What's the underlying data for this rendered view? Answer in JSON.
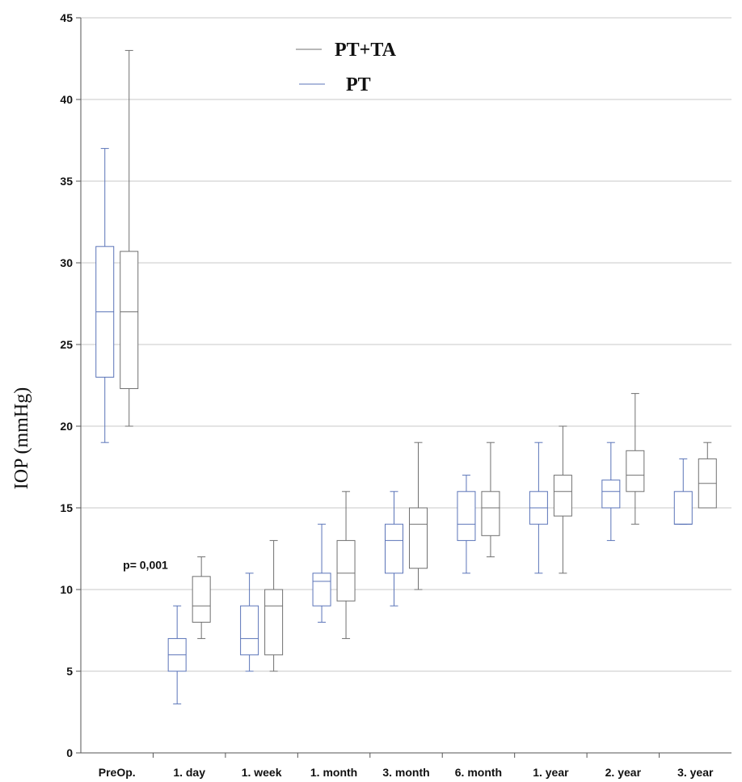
{
  "chart_data": {
    "type": "boxplot",
    "title": "",
    "xlabel": "",
    "ylabel": "IOP (mmHg)",
    "ylim": [
      0,
      45
    ],
    "yticks": [
      0,
      5,
      10,
      15,
      20,
      25,
      30,
      35,
      40,
      45
    ],
    "grid": "horizontal",
    "legend_position": "top-center",
    "categories": [
      "PreOp.",
      "1. day",
      "1. week",
      "1. month",
      "3. month",
      "6. month",
      "1. year",
      "2. year",
      "3. year"
    ],
    "series": [
      {
        "name": "PT",
        "color": "#5b74b8",
        "boxes": [
          {
            "min": 19,
            "q1": 23,
            "median": 27,
            "q3": 31,
            "max": 37
          },
          {
            "min": 3,
            "q1": 5,
            "median": 6,
            "q3": 7,
            "max": 9
          },
          {
            "min": 5,
            "q1": 6,
            "median": 7,
            "q3": 9,
            "max": 11
          },
          {
            "min": 8,
            "q1": 9,
            "median": 10.5,
            "q3": 11,
            "max": 14
          },
          {
            "min": 9,
            "q1": 11,
            "median": 13,
            "q3": 14,
            "max": 16
          },
          {
            "min": 11,
            "q1": 13,
            "median": 14,
            "q3": 16,
            "max": 17
          },
          {
            "min": 11,
            "q1": 14,
            "median": 15,
            "q3": 16,
            "max": 19
          },
          {
            "min": 13,
            "q1": 15,
            "median": 16,
            "q3": 16.7,
            "max": 19
          },
          {
            "min": 14,
            "q1": 14,
            "median": 14,
            "q3": 16,
            "max": 18
          }
        ]
      },
      {
        "name": "PT+TA",
        "color": "#707070",
        "boxes": [
          {
            "min": 20,
            "q1": 22.3,
            "median": 27,
            "q3": 30.7,
            "max": 43
          },
          {
            "min": 7,
            "q1": 8,
            "median": 9,
            "q3": 10.8,
            "max": 12
          },
          {
            "min": 5,
            "q1": 6,
            "median": 9,
            "q3": 10,
            "max": 13
          },
          {
            "min": 7,
            "q1": 9.3,
            "median": 11,
            "q3": 13,
            "max": 16
          },
          {
            "min": 10,
            "q1": 11.3,
            "median": 14,
            "q3": 15,
            "max": 19
          },
          {
            "min": 12,
            "q1": 13.3,
            "median": 15,
            "q3": 16,
            "max": 19
          },
          {
            "min": 11,
            "q1": 14.5,
            "median": 16,
            "q3": 17,
            "max": 20
          },
          {
            "min": 14,
            "q1": 16,
            "median": 17,
            "q3": 18.5,
            "max": 22
          },
          {
            "min": 15,
            "q1": 15,
            "median": 16.5,
            "q3": 18,
            "max": 19
          }
        ]
      }
    ],
    "legend": [
      {
        "label": "PT+TA",
        "color": "#707070"
      },
      {
        "label": "PT",
        "color": "#5b74b8"
      }
    ],
    "annotations": [
      {
        "text": "p= 0,001",
        "category": "1. day",
        "y": 11.5
      }
    ]
  }
}
